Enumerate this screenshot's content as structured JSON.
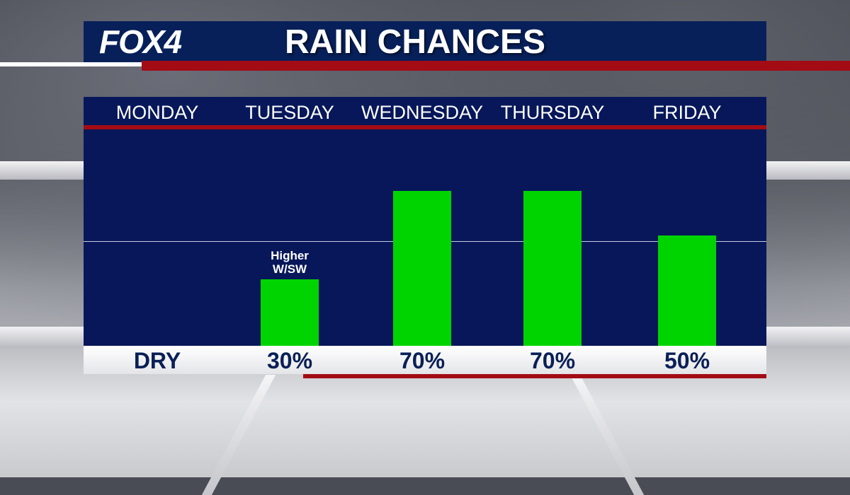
{
  "header": {
    "logo": "FOX4",
    "title": "RAIN CHANCES"
  },
  "colors": {
    "navy": "#07175a",
    "header_navy": "#07205a",
    "accent_red": "#a30c14",
    "bar_green": "#00d400"
  },
  "chart_data": {
    "type": "bar",
    "categories": [
      "MONDAY",
      "TUESDAY",
      "WEDNESDAY",
      "THURSDAY",
      "FRIDAY"
    ],
    "values": [
      0,
      30,
      70,
      70,
      50
    ],
    "value_labels": [
      "DRY",
      "30%",
      "70%",
      "70%",
      "50%"
    ],
    "annotations": [
      {
        "category": "TUESDAY",
        "text": "Higher W/SW"
      }
    ],
    "ylim": [
      0,
      100
    ],
    "grid": "single line at 50%"
  }
}
